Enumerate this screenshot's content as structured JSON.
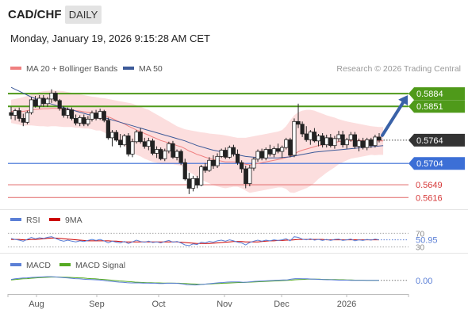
{
  "header": {
    "symbol": "CAD/CHF",
    "period": "DAILY",
    "timestamp": "Monday, January 19, 2026 9:15:28 AM CET"
  },
  "legend": {
    "ma20_label": "MA 20 + Bollinger Bands",
    "ma50_label": "MA 50",
    "copyright": "Research © 2026 Trading Central",
    "ma20_color": "#f08080",
    "ma50_color": "#3d5a99",
    "rsi_label": "RSI",
    "rsi9_label": "9MA",
    "macd_label": "MACD",
    "macd_signal_label": "MACD Signal",
    "rsi_color": "#5b7fd6",
    "rsi9_color": "#cc0000",
    "macd_color": "#5b7fd6",
    "macd_signal_color": "#55aa22"
  },
  "chart_data": {
    "type": "candlestick",
    "x_ticks": [
      "Aug",
      "Sep",
      "Oct",
      "Nov",
      "Dec",
      "2026"
    ],
    "ylim": [
      0.559,
      0.5925
    ],
    "current_price": {
      "value": 0.5764,
      "label": "0.5764"
    },
    "levels": [
      {
        "value": 0.5884,
        "label": "0.5884",
        "kind": "resistance",
        "color": "#4f9a1a"
      },
      {
        "value": 0.5851,
        "label": "0.5851",
        "kind": "resistance",
        "color": "#4f9a1a"
      },
      {
        "value": 0.5704,
        "label": "0.5704",
        "kind": "pivot",
        "color": "#3c6fd6"
      },
      {
        "value": 0.5649,
        "label": "0.5649",
        "kind": "support",
        "color": "#e06666"
      },
      {
        "value": 0.5616,
        "label": "0.5616",
        "kind": "support",
        "color": "#e06666"
      }
    ],
    "candles": [
      [
        0.5835,
        0.585,
        0.5818,
        0.5828
      ],
      [
        0.5828,
        0.5845,
        0.5815,
        0.584
      ],
      [
        0.584,
        0.5848,
        0.5812,
        0.582
      ],
      [
        0.582,
        0.5832,
        0.58,
        0.581
      ],
      [
        0.581,
        0.584,
        0.5805,
        0.5835
      ],
      [
        0.5835,
        0.5875,
        0.583,
        0.5868
      ],
      [
        0.5868,
        0.5878,
        0.5848,
        0.5852
      ],
      [
        0.5852,
        0.588,
        0.5845,
        0.5872
      ],
      [
        0.5872,
        0.588,
        0.585,
        0.5858
      ],
      [
        0.5858,
        0.5875,
        0.585,
        0.587
      ],
      [
        0.587,
        0.5895,
        0.586,
        0.5885
      ],
      [
        0.5885,
        0.589,
        0.5862,
        0.5866
      ],
      [
        0.5866,
        0.587,
        0.584,
        0.5846
      ],
      [
        0.5846,
        0.5852,
        0.5822,
        0.5828
      ],
      [
        0.5828,
        0.5848,
        0.582,
        0.5842
      ],
      [
        0.5842,
        0.5848,
        0.5815,
        0.582
      ],
      [
        0.582,
        0.583,
        0.5802,
        0.5808
      ],
      [
        0.5808,
        0.5828,
        0.58,
        0.5822
      ],
      [
        0.5822,
        0.583,
        0.58,
        0.5806
      ],
      [
        0.5806,
        0.5826,
        0.58,
        0.5818
      ],
      [
        0.5818,
        0.584,
        0.5812,
        0.5834
      ],
      [
        0.5834,
        0.5842,
        0.5815,
        0.582
      ],
      [
        0.582,
        0.5845,
        0.5816,
        0.5838
      ],
      [
        0.5838,
        0.5842,
        0.581,
        0.5815
      ],
      [
        0.5815,
        0.5822,
        0.5765,
        0.577
      ],
      [
        0.577,
        0.579,
        0.5748,
        0.5784
      ],
      [
        0.5784,
        0.579,
        0.576,
        0.5764
      ],
      [
        0.5764,
        0.578,
        0.5745,
        0.5752
      ],
      [
        0.5752,
        0.578,
        0.5748,
        0.5775
      ],
      [
        0.5775,
        0.5782,
        0.5722,
        0.5728
      ],
      [
        0.5728,
        0.5768,
        0.572,
        0.576
      ],
      [
        0.576,
        0.579,
        0.5755,
        0.5785
      ],
      [
        0.5785,
        0.5795,
        0.5755,
        0.576
      ],
      [
        0.576,
        0.577,
        0.5742,
        0.5748
      ],
      [
        0.5748,
        0.577,
        0.5738,
        0.5762
      ],
      [
        0.5762,
        0.5768,
        0.5725,
        0.573
      ],
      [
        0.573,
        0.5748,
        0.5718,
        0.574
      ],
      [
        0.574,
        0.5745,
        0.5712,
        0.5716
      ],
      [
        0.5716,
        0.5742,
        0.571,
        0.5736
      ],
      [
        0.5736,
        0.576,
        0.573,
        0.5755
      ],
      [
        0.5755,
        0.5762,
        0.5716,
        0.572
      ],
      [
        0.572,
        0.574,
        0.5712,
        0.5735
      ],
      [
        0.5735,
        0.574,
        0.57,
        0.5706
      ],
      [
        0.5706,
        0.5716,
        0.566,
        0.5664
      ],
      [
        0.5664,
        0.568,
        0.5625,
        0.564
      ],
      [
        0.564,
        0.5672,
        0.5632,
        0.5665
      ],
      [
        0.5665,
        0.5672,
        0.564,
        0.5648
      ],
      [
        0.5648,
        0.57,
        0.5645,
        0.5695
      ],
      [
        0.5695,
        0.5705,
        0.568,
        0.5686
      ],
      [
        0.5686,
        0.572,
        0.5682,
        0.5712
      ],
      [
        0.5712,
        0.5725,
        0.569,
        0.5698
      ],
      [
        0.5698,
        0.573,
        0.5692,
        0.5722
      ],
      [
        0.5722,
        0.5742,
        0.5718,
        0.5738
      ],
      [
        0.5738,
        0.5745,
        0.5715,
        0.572
      ],
      [
        0.572,
        0.575,
        0.5716,
        0.5745
      ],
      [
        0.5745,
        0.5752,
        0.5722,
        0.5728
      ],
      [
        0.5728,
        0.574,
        0.57,
        0.5706
      ],
      [
        0.5706,
        0.5712,
        0.568,
        0.569
      ],
      [
        0.569,
        0.5698,
        0.564,
        0.5652
      ],
      [
        0.5652,
        0.57,
        0.5645,
        0.5692
      ],
      [
        0.5692,
        0.572,
        0.5685,
        0.5715
      ],
      [
        0.5715,
        0.574,
        0.5708,
        0.5735
      ],
      [
        0.5735,
        0.5742,
        0.5712,
        0.5718
      ],
      [
        0.5718,
        0.5745,
        0.5712,
        0.574
      ],
      [
        0.574,
        0.5752,
        0.5722,
        0.5728
      ],
      [
        0.5728,
        0.5748,
        0.572,
        0.5742
      ],
      [
        0.5742,
        0.5755,
        0.573,
        0.5735
      ],
      [
        0.5735,
        0.575,
        0.5718,
        0.5745
      ],
      [
        0.5745,
        0.577,
        0.574,
        0.5765
      ],
      [
        0.5765,
        0.577,
        0.572,
        0.5725
      ],
      [
        0.5725,
        0.582,
        0.572,
        0.5812
      ],
      [
        0.5812,
        0.5858,
        0.5795,
        0.5805
      ],
      [
        0.5805,
        0.5812,
        0.5772,
        0.578
      ],
      [
        0.578,
        0.58,
        0.576,
        0.5765
      ],
      [
        0.5765,
        0.579,
        0.5752,
        0.5785
      ],
      [
        0.5785,
        0.5795,
        0.5758,
        0.5762
      ],
      [
        0.5762,
        0.578,
        0.5748,
        0.5775
      ],
      [
        0.5775,
        0.5782,
        0.5745,
        0.5752
      ],
      [
        0.5752,
        0.5778,
        0.5745,
        0.577
      ],
      [
        0.577,
        0.578,
        0.5745,
        0.575
      ],
      [
        0.575,
        0.5775,
        0.5742,
        0.5768
      ],
      [
        0.5768,
        0.5788,
        0.576,
        0.5778
      ],
      [
        0.5778,
        0.5788,
        0.5745,
        0.5752
      ],
      [
        0.5752,
        0.577,
        0.5742,
        0.5765
      ],
      [
        0.5765,
        0.5785,
        0.576,
        0.5778
      ],
      [
        0.5778,
        0.5785,
        0.5742,
        0.5748
      ],
      [
        0.5748,
        0.5768,
        0.5735,
        0.5762
      ],
      [
        0.5762,
        0.577,
        0.574,
        0.5745
      ],
      [
        0.5745,
        0.577,
        0.5738,
        0.5765
      ],
      [
        0.5765,
        0.577,
        0.5744,
        0.575
      ],
      [
        0.575,
        0.5778,
        0.5745,
        0.5772
      ],
      [
        0.5772,
        0.5782,
        0.5758,
        0.5764
      ]
    ],
    "ma20": [
      0.5838,
      0.5838,
      0.5838,
      0.5838,
      0.584,
      0.5842,
      0.5843,
      0.5844,
      0.5845,
      0.5845,
      0.5846,
      0.5846,
      0.5845,
      0.5844,
      0.5843,
      0.5842,
      0.584,
      0.5839,
      0.5837,
      0.5836,
      0.5834,
      0.5832,
      0.5831,
      0.5828,
      0.5824,
      0.582,
      0.5815,
      0.581,
      0.5806,
      0.58,
      0.5795,
      0.579,
      0.5786,
      0.5781,
      0.5777,
      0.5772,
      0.5768,
      0.5763,
      0.576,
      0.5757,
      0.5754,
      0.575,
      0.5747,
      0.5742,
      0.5736,
      0.5732,
      0.5727,
      0.5724,
      0.572,
      0.5717,
      0.5714,
      0.5712,
      0.571,
      0.5708,
      0.5708,
      0.5708,
      0.5707,
      0.5705,
      0.5702,
      0.57,
      0.5702,
      0.5704,
      0.5706,
      0.5708,
      0.571,
      0.5712,
      0.5714,
      0.5716,
      0.5719,
      0.5722,
      0.5728,
      0.5734,
      0.5738,
      0.5741,
      0.5744,
      0.5747,
      0.575,
      0.5752,
      0.5754,
      0.5756,
      0.5758,
      0.576,
      0.5761,
      0.5762,
      0.5763,
      0.5763,
      0.5763,
      0.5763,
      0.5763,
      0.5763,
      0.5762,
      0.5762,
      0.5762
    ],
    "bb_upper": [
      0.5868,
      0.587,
      0.5872,
      0.5875,
      0.5878,
      0.5882,
      0.5885,
      0.5888,
      0.589,
      0.5891,
      0.5892,
      0.5892,
      0.5891,
      0.589,
      0.5888,
      0.5886,
      0.5884,
      0.5882,
      0.588,
      0.5878,
      0.5876,
      0.5875,
      0.5873,
      0.5872,
      0.587,
      0.5868,
      0.5866,
      0.5864,
      0.5862,
      0.586,
      0.5858,
      0.5854,
      0.585,
      0.5846,
      0.5842,
      0.5836,
      0.583,
      0.5824,
      0.5818,
      0.5812,
      0.5806,
      0.58,
      0.5796,
      0.5792,
      0.579,
      0.5788,
      0.5786,
      0.5784,
      0.5783,
      0.5781,
      0.578,
      0.5779,
      0.5778,
      0.5776,
      0.5774,
      0.5772,
      0.577,
      0.577,
      0.577,
      0.5772,
      0.5774,
      0.5776,
      0.5778,
      0.578,
      0.5782,
      0.5784,
      0.5786,
      0.579,
      0.58,
      0.5815,
      0.5828,
      0.5836,
      0.584,
      0.5842,
      0.5842,
      0.584,
      0.5836,
      0.5832,
      0.5828,
      0.5825,
      0.5822,
      0.5818,
      0.5815,
      0.5812,
      0.581,
      0.5808,
      0.5806,
      0.5804,
      0.5802,
      0.58,
      0.5799,
      0.5798,
      0.5798
    ],
    "bb_lower": [
      0.5808,
      0.5806,
      0.5804,
      0.5801,
      0.5802,
      0.5802,
      0.5801,
      0.58,
      0.58,
      0.5799,
      0.58,
      0.58,
      0.5799,
      0.5798,
      0.5798,
      0.5798,
      0.5796,
      0.5796,
      0.5794,
      0.5794,
      0.5792,
      0.5789,
      0.5789,
      0.5784,
      0.5778,
      0.5772,
      0.5764,
      0.5756,
      0.575,
      0.574,
      0.5732,
      0.5726,
      0.5722,
      0.5716,
      0.5712,
      0.5708,
      0.5706,
      0.5702,
      0.5702,
      0.5702,
      0.5702,
      0.57,
      0.5698,
      0.5692,
      0.5682,
      0.5676,
      0.5668,
      0.5664,
      0.5657,
      0.5653,
      0.5648,
      0.5645,
      0.5642,
      0.564,
      0.5642,
      0.5644,
      0.5644,
      0.564,
      0.5634,
      0.5628,
      0.563,
      0.5632,
      0.5634,
      0.5636,
      0.5638,
      0.564,
      0.5642,
      0.5642,
      0.5638,
      0.5629,
      0.5628,
      0.5632,
      0.5636,
      0.564,
      0.5646,
      0.5654,
      0.5664,
      0.5672,
      0.568,
      0.5687,
      0.5694,
      0.5702,
      0.5707,
      0.5712,
      0.5716,
      0.5718,
      0.572,
      0.5722,
      0.5724,
      0.5726,
      0.5725,
      0.5726,
      0.5726
    ],
    "ma50": [
      0.59,
      0.5895,
      0.589,
      0.5885,
      0.588,
      0.5875,
      0.5871,
      0.5867,
      0.5863,
      0.586,
      0.5857,
      0.5854,
      0.5851,
      0.5848,
      0.5845,
      0.5842,
      0.5839,
      0.5836,
      0.5833,
      0.583,
      0.5828,
      0.5826,
      0.5824,
      0.5822,
      0.5819,
      0.5816,
      0.5813,
      0.581,
      0.5807,
      0.5804,
      0.5801,
      0.5798,
      0.5795,
      0.5792,
      0.5789,
      0.5786,
      0.5783,
      0.578,
      0.5777,
      0.5774,
      0.5771,
      0.5768,
      0.5765,
      0.5762,
      0.5758,
      0.5754,
      0.575,
      0.5747,
      0.5744,
      0.5741,
      0.5738,
      0.5736,
      0.5734,
      0.5732,
      0.573,
      0.5728,
      0.5726,
      0.5724,
      0.5722,
      0.5721,
      0.572,
      0.5719,
      0.5718,
      0.5718,
      0.5718,
      0.5718,
      0.5718,
      0.5719,
      0.572,
      0.5721,
      0.5723,
      0.5725,
      0.5727,
      0.5729,
      0.5731,
      0.5733,
      0.5734,
      0.5735,
      0.5736,
      0.5737,
      0.5738,
      0.5739,
      0.574,
      0.5741,
      0.5742,
      0.5743,
      0.5744,
      0.5745,
      0.5746,
      0.5747,
      0.5748,
      0.5749,
      0.575
    ],
    "rsi": {
      "ticks": [
        {
          "value": 70,
          "label": "70"
        },
        {
          "value": 30,
          "label": "30"
        }
      ],
      "ylim": [
        20,
        80
      ],
      "current": {
        "value": 50.95,
        "label": "50.95"
      },
      "rsi_values": [
        55,
        52,
        50,
        47,
        52,
        58,
        54,
        57,
        55,
        58,
        60,
        55,
        50,
        47,
        50,
        47,
        45,
        48,
        46,
        49,
        52,
        49,
        52,
        48,
        42,
        47,
        44,
        42,
        46,
        40,
        45,
        50,
        46,
        44,
        47,
        43,
        45,
        42,
        46,
        49,
        44,
        46,
        42,
        36,
        34,
        39,
        37,
        44,
        42,
        46,
        44,
        48,
        50,
        47,
        51,
        48,
        44,
        42,
        36,
        43,
        47,
        50,
        47,
        50,
        48,
        51,
        49,
        51,
        54,
        48,
        60,
        58,
        53,
        51,
        54,
        50,
        52,
        49,
        52,
        49,
        52,
        53,
        49,
        51,
        53,
        48,
        51,
        49,
        52,
        50,
        53,
        51
      ],
      "ma9_values": [
        52,
        52,
        52,
        51,
        51,
        52,
        52,
        53,
        54,
        55,
        56,
        56,
        55,
        54,
        53,
        52,
        51,
        50,
        49,
        48,
        48,
        48,
        48,
        48,
        48,
        47,
        47,
        46,
        45,
        45,
        45,
        45,
        45,
        45,
        45,
        45,
        45,
        45,
        45,
        45,
        45,
        45,
        44,
        43,
        42,
        41,
        40,
        40,
        40,
        40,
        41,
        42,
        43,
        44,
        45,
        46,
        46,
        46,
        45,
        45,
        45,
        45,
        46,
        47,
        48,
        48,
        49,
        49,
        50,
        50,
        51,
        52,
        52,
        52,
        52,
        52,
        52,
        52,
        51,
        51,
        51,
        51,
        51,
        51,
        51,
        51,
        51,
        51,
        51,
        51,
        51,
        51
      ]
    },
    "macd": {
      "current": {
        "value": 0.0,
        "label": "0.00"
      },
      "ylim": [
        -0.005,
        0.004
      ],
      "macd_values": [
        0.0005,
        0.0008,
        0.001,
        0.0012,
        0.0013,
        0.0015,
        0.0016,
        0.0017,
        0.0018,
        0.0019,
        0.0019,
        0.0018,
        0.0016,
        0.0014,
        0.0013,
        0.0011,
        0.0009,
        0.0008,
        0.0006,
        0.0005,
        0.0004,
        0.0003,
        0.0002,
        0.0,
        -0.0003,
        -0.0005,
        -0.0007,
        -0.0009,
        -0.001,
        -0.0012,
        -0.0013,
        -0.0013,
        -0.0013,
        -0.0014,
        -0.0014,
        -0.0015,
        -0.0015,
        -0.0016,
        -0.0016,
        -0.0015,
        -0.0015,
        -0.0015,
        -0.0016,
        -0.0019,
        -0.0022,
        -0.0023,
        -0.0024,
        -0.0022,
        -0.002,
        -0.0018,
        -0.0016,
        -0.0014,
        -0.0012,
        -0.0011,
        -0.0009,
        -0.0008,
        -0.0008,
        -0.0008,
        -0.001,
        -0.0009,
        -0.0007,
        -0.0005,
        -0.0004,
        -0.0003,
        -0.0002,
        -0.0001,
        0.0,
        0.0001,
        0.0002,
        0.0002,
        0.0006,
        0.0009,
        0.0009,
        0.0008,
        0.0008,
        0.0007,
        0.0006,
        0.0005,
        0.0004,
        0.0003,
        0.0003,
        0.0002,
        0.0001,
        0.0001,
        0.0001,
        0.0,
        0.0,
        0.0,
        0.0,
        0.0,
        0.0,
        0.0,
        0.0
      ],
      "signal_values": [
        0.0002,
        0.0004,
        0.0006,
        0.0008,
        0.0009,
        0.0011,
        0.0012,
        0.0014,
        0.0015,
        0.0016,
        0.0017,
        0.0017,
        0.0017,
        0.0016,
        0.0016,
        0.0015,
        0.0014,
        0.0013,
        0.0012,
        0.001,
        0.0009,
        0.0008,
        0.0006,
        0.0005,
        0.0003,
        0.0001,
        -0.0001,
        -0.0003,
        -0.0004,
        -0.0006,
        -0.0007,
        -0.0009,
        -0.001,
        -0.0011,
        -0.0012,
        -0.0012,
        -0.0013,
        -0.0013,
        -0.0014,
        -0.0014,
        -0.0014,
        -0.0015,
        -0.0015,
        -0.0016,
        -0.0017,
        -0.0018,
        -0.0019,
        -0.002,
        -0.002,
        -0.0019,
        -0.0018,
        -0.0017,
        -0.0016,
        -0.0015,
        -0.0014,
        -0.0013,
        -0.0012,
        -0.0011,
        -0.0011,
        -0.001,
        -0.0009,
        -0.0008,
        -0.0007,
        -0.0006,
        -0.0005,
        -0.0004,
        -0.0003,
        -0.0002,
        -0.0001,
        0.0,
        0.0001,
        0.0003,
        0.0004,
        0.0005,
        0.0006,
        0.0006,
        0.0006,
        0.0006,
        0.0005,
        0.0005,
        0.0004,
        0.0004,
        0.0003,
        0.0003,
        0.0002,
        0.0002,
        0.0001,
        0.0001,
        0.0001,
        0.0,
        0.0,
        0.0,
        0.0
      ]
    }
  }
}
